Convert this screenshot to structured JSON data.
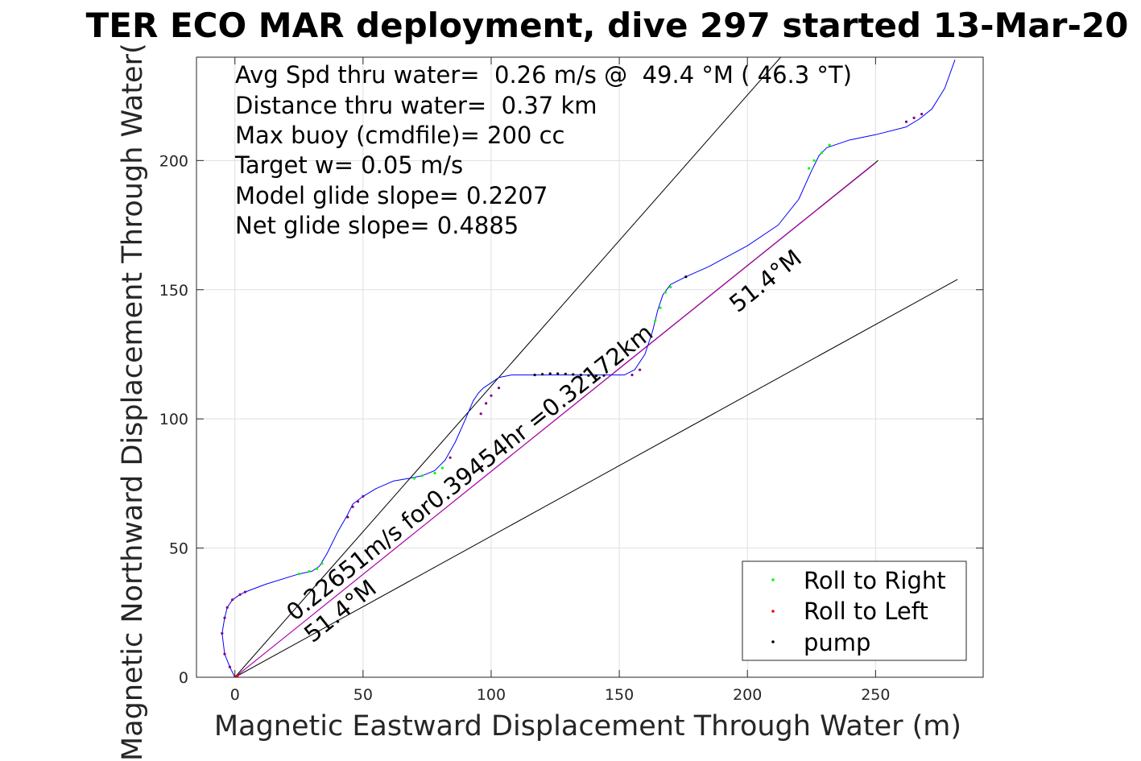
{
  "chart_data": {
    "type": "scatter",
    "title": "TER ECO MAR deployment, dive 297 started 13-Mar-20",
    "xlabel": "Magnetic Eastward Displacement Through Water (m)",
    "ylabel": "Magnetic Northward Displacement Through Water(",
    "xlim": [
      -15,
      292
    ],
    "ylim": [
      0,
      240
    ],
    "grid": true,
    "x_ticks": [
      0,
      50,
      100,
      150,
      200,
      250
    ],
    "y_ticks": [
      0,
      50,
      100,
      150,
      200
    ],
    "x_tick_labels": [
      "0",
      "50",
      "100",
      "150",
      "200",
      "250"
    ],
    "y_tick_labels": [
      "0",
      "50",
      "100",
      "150",
      "200"
    ],
    "info_lines": [
      "Avg Spd thru water=  0.26 m/s @  49.4 °M ( 46.3 °T)",
      "Distance thru water=  0.37 km",
      "Max buoy (cmdfile)= 200 cc",
      "Target w= 0.05 m/s",
      "Model glide slope= 0.2207",
      "Net glide slope= 0.4885"
    ],
    "annotations": {
      "heading_low": "51.4°M",
      "speed_distance": "0.22651m/s for0.39454hr =0.32172km",
      "heading_high": "51.4°M"
    },
    "reference_lines": [
      {
        "name": "upper",
        "color": "#000000",
        "x": [
          0,
          213
        ],
        "y": [
          0,
          240
        ]
      },
      {
        "name": "lower",
        "color": "#000000",
        "x": [
          0,
          282
        ],
        "y": [
          0,
          154
        ]
      },
      {
        "name": "heading",
        "color": "#000000",
        "x": [
          0,
          251
        ],
        "y": [
          0,
          200
        ]
      },
      {
        "name": "heading-overlay",
        "color": "#cc00cc",
        "x": [
          0,
          250
        ],
        "y": [
          0,
          199
        ]
      }
    ],
    "series": [
      {
        "name": "track",
        "color": "#0000ff",
        "x": [
          0,
          -2,
          -4,
          -5,
          -4,
          -3,
          -1,
          2,
          4,
          12,
          25,
          30,
          33,
          36,
          40,
          44,
          46,
          50,
          55,
          62,
          68,
          73,
          78,
          82,
          86,
          90,
          93,
          95,
          97,
          100,
          103,
          108,
          115,
          120,
          126,
          132,
          138,
          145,
          152,
          156,
          160,
          163,
          165,
          167,
          170,
          176,
          185,
          200,
          212,
          220,
          225,
          228,
          231,
          240,
          250,
          262,
          267,
          272,
          277,
          281
        ],
        "y": [
          0,
          4,
          9,
          17,
          23,
          27,
          30,
          32,
          33,
          36,
          40,
          41,
          43,
          48,
          56,
          63,
          67,
          70,
          73,
          76,
          77,
          78,
          80,
          84,
          91,
          100,
          107,
          110,
          112,
          114,
          116,
          117,
          117,
          117,
          117,
          117,
          117,
          117,
          117,
          119,
          125,
          134,
          142,
          148,
          152,
          155,
          159,
          167,
          175,
          185,
          196,
          202,
          205,
          208,
          210,
          213,
          216,
          220,
          228,
          239
        ]
      },
      {
        "name": "Roll to Right",
        "color": "#00ff00",
        "x": [
          25,
          29,
          32,
          34,
          70,
          73,
          78,
          81,
          164,
          166,
          168,
          170,
          224,
          226,
          229,
          232
        ],
        "y": [
          40,
          41,
          42,
          44,
          77,
          78,
          79,
          81,
          138,
          143,
          149,
          151,
          197,
          200,
          203,
          206
        ]
      },
      {
        "name": "Roll to Left",
        "color": "#ff0000",
        "x": [
          0,
          0.5,
          1
        ],
        "y": [
          0,
          0.3,
          0.6
        ]
      },
      {
        "name": "pump",
        "color": "#000000",
        "x": [
          117,
          120,
          123,
          126,
          129,
          132,
          135,
          138,
          141,
          144,
          176
        ],
        "y": [
          117,
          117.3,
          117.5,
          117.5,
          117.4,
          117.2,
          117,
          116.8,
          116.7,
          116.8,
          155
        ]
      },
      {
        "name": "track-marks",
        "color": "#800080",
        "x": [
          -2,
          -4,
          -5,
          -4,
          -3,
          -1,
          2,
          4,
          44,
          46,
          48,
          50,
          84,
          96,
          98,
          100,
          103,
          155,
          158,
          262,
          265,
          268
        ],
        "y": [
          4,
          9,
          17,
          23,
          27,
          30,
          32,
          33,
          62,
          66,
          68,
          70,
          85,
          102,
          106,
          109,
          112,
          117,
          119,
          215,
          216.5,
          218
        ]
      }
    ],
    "legend": {
      "placement": "bottom-right",
      "entries": [
        {
          "label": "Roll to Right",
          "color": "#00ff00"
        },
        {
          "label": "Roll to Left",
          "color": "#ff0000"
        },
        {
          "label": "pump",
          "color": "#000000"
        }
      ]
    }
  }
}
